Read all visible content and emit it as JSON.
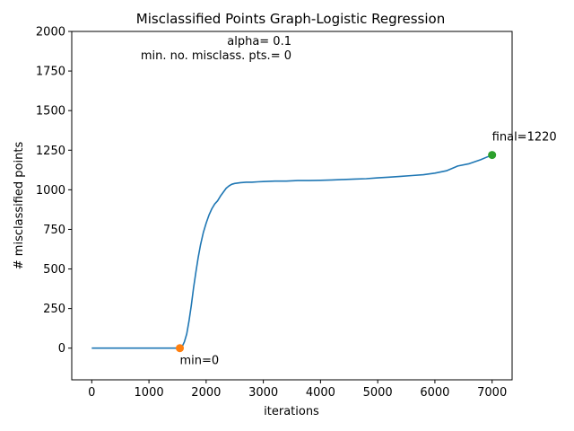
{
  "chart_data": {
    "type": "line",
    "title": "Misclassified Points Graph-Logistic Regression",
    "xlabel": "iterations",
    "ylabel": "# misclassified points",
    "xlim": [
      -350,
      7350
    ],
    "ylim": [
      -200,
      2000
    ],
    "xticks": [
      0,
      1000,
      2000,
      3000,
      4000,
      5000,
      6000,
      7000
    ],
    "yticks": [
      0,
      250,
      500,
      750,
      1000,
      1250,
      1500,
      1750,
      2000
    ],
    "grid": false,
    "colors": {
      "line": "#1f77b4",
      "min_marker": "#ff7f0e",
      "final_marker": "#2ca02c"
    },
    "series": [
      {
        "x": [
          0,
          1000,
          1500,
          1540,
          1580,
          1620,
          1660,
          1700,
          1740,
          1780,
          1820,
          1860,
          1900,
          1950,
          2000,
          2050,
          2100,
          2150,
          2200,
          2250,
          2300,
          2350,
          2400,
          2450,
          2500,
          2600,
          2700,
          2800,
          2900,
          3000,
          3200,
          3400,
          3600,
          3800,
          4000,
          4200,
          4400,
          4600,
          4800,
          5000,
          5200,
          5400,
          5600,
          5800,
          6000,
          6200,
          6400,
          6600,
          6800,
          6900,
          7000
        ],
        "values": [
          0,
          0,
          0,
          0,
          10,
          40,
          90,
          170,
          270,
          380,
          480,
          570,
          650,
          730,
          790,
          840,
          880,
          910,
          930,
          960,
          985,
          1010,
          1025,
          1035,
          1040,
          1045,
          1048,
          1048,
          1050,
          1052,
          1055,
          1055,
          1058,
          1058,
          1060,
          1062,
          1065,
          1068,
          1070,
          1075,
          1080,
          1085,
          1090,
          1095,
          1105,
          1120,
          1150,
          1165,
          1190,
          1205,
          1220
        ]
      }
    ],
    "markers": [
      {
        "name": "min",
        "x": 1540,
        "y": 0,
        "label": "min=0"
      },
      {
        "name": "final",
        "x": 7000,
        "y": 1220,
        "label": "final=1220"
      }
    ],
    "annotations": [
      "alpha= 0.1",
      "min. no. misclass. pts.= 0"
    ]
  }
}
